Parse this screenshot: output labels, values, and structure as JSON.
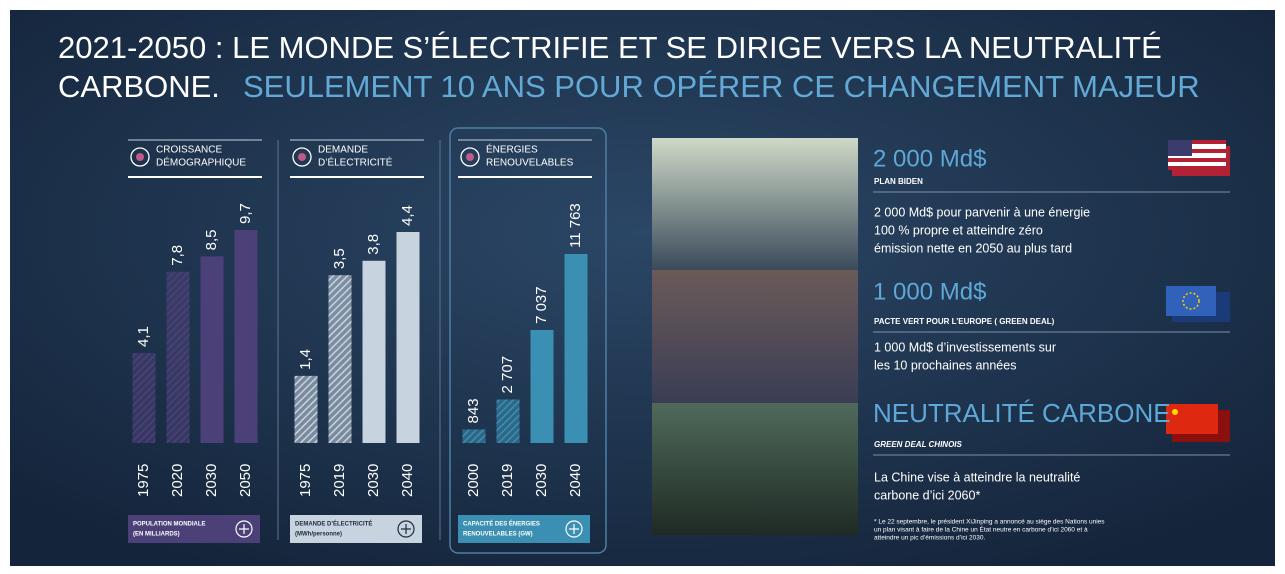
{
  "header": {
    "title_line1": "2021-2050 : LE MONDE S’ÉLECTRIFIE ET SE DIRIGE VERS LA NEUTRALITÉ",
    "title_line2_a": "CARBONE.",
    "title_line2_b": "SEULEMENT 10 ANS POUR OPÉRER CE CHANGEMENT MAJEUR"
  },
  "chart_data": [
    {
      "type": "bar",
      "title": [
        "CROISSANCE",
        "DÉMOGRAPHIQUE"
      ],
      "footer": [
        "POPULATION MONDIALE",
        "(EN MILLIARDS)"
      ],
      "categories": [
        "1975",
        "2020",
        "2030",
        "2050"
      ],
      "values": [
        4.1,
        7.8,
        8.5,
        9.7
      ],
      "value_labels": [
        "4,1",
        "7,8",
        "8,5",
        "9,7"
      ],
      "color": "#4b4178",
      "hatched": [
        true,
        true,
        false,
        false
      ]
    },
    {
      "type": "bar",
      "title": [
        "DEMANDE",
        "D’ÉLECTRICITÉ"
      ],
      "footer": [
        "DEMANDE D’ÉLECTRICITÉ",
        "(MWh/personne)"
      ],
      "categories": [
        "1975",
        "2019",
        "2030",
        "2040"
      ],
      "values": [
        1.4,
        3.5,
        3.8,
        4.4
      ],
      "value_labels": [
        "1,4",
        "3,5",
        "3,8",
        "4,4"
      ],
      "color": "#c7d3df",
      "hatched": [
        true,
        true,
        false,
        false
      ]
    },
    {
      "type": "bar",
      "title": [
        "ÉNERGIES",
        "RENOUVELABLES"
      ],
      "footer": [
        "CAPACITÉ DES ÉNERGIES",
        "RENOUVELABLES (GW)"
      ],
      "categories": [
        "2000",
        "2019",
        "2030",
        "2040"
      ],
      "values": [
        843,
        2707,
        7037,
        11763
      ],
      "value_labels": [
        "843",
        "2 707",
        "7 037",
        "11 763"
      ],
      "color": "#3b8fb2",
      "hatched": [
        true,
        true,
        false,
        false
      ]
    }
  ],
  "panels": [
    {
      "amount": "2 000 Md$",
      "subtitle": "PLAN BIDEN",
      "text": [
        "2 000 Md$ pour parvenir à une énergie",
        "100 % propre et atteindre zéro",
        "émission nette en 2050 au plus tard"
      ]
    },
    {
      "amount": "1 000 Md$",
      "subtitle": "PACTE VERT POUR L’EUROPE ( GREEN DEAL)",
      "text": [
        "1 000 Md$ d’investissements sur",
        "les 10 prochaines années"
      ]
    },
    {
      "amount": "NEUTRALITÉ CARBONE",
      "subtitle": "GREEN DEAL CHINOIS",
      "text": [
        "La Chine vise à atteindre la neutralité",
        "carbone d’ici 2060*"
      ]
    }
  ],
  "footnote": [
    "* Le 22 septembre, le président XiJinping a annoncé au siège des Nations unies",
    "un plan visant à faire de la Chine un État neutre en carbone d’ici 2060 et à",
    "atteindre un pic d’émissions d’ici 2030."
  ]
}
